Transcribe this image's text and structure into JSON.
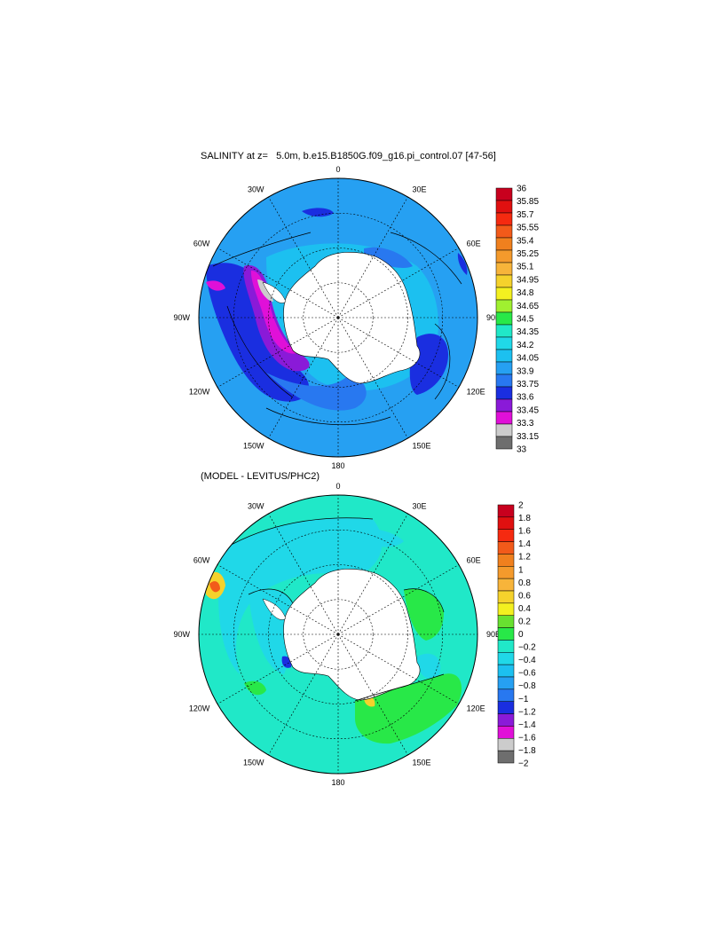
{
  "top_panel": {
    "title": "SALINITY at z=   5.0m, b.e15.B1850G.f09_g16.pi_control.07 [47-56]",
    "lon_labels": [
      "0",
      "30E",
      "60E",
      "90E",
      "120E",
      "150E",
      "180",
      "150W",
      "120W",
      "90W",
      "60W",
      "30W"
    ],
    "colorbar": {
      "labels": [
        "36",
        "35.85",
        "35.7",
        "35.55",
        "35.4",
        "35.25",
        "35.1",
        "34.95",
        "34.8",
        "34.65",
        "34.5",
        "34.35",
        "34.2",
        "34.05",
        "33.9",
        "33.75",
        "33.6",
        "33.45",
        "33.3",
        "33.15",
        "33"
      ],
      "colors": [
        "#c8001e",
        "#e01010",
        "#f52a10",
        "#f25a1a",
        "#f0801e",
        "#f49a2c",
        "#f7b43a",
        "#f5d22c",
        "#f3f020",
        "#a0f030",
        "#28e848",
        "#20e8c8",
        "#20d8e8",
        "#1cc0f0",
        "#26a0f2",
        "#2878f0",
        "#1a2ee0",
        "#8a1ad8",
        "#e010d8",
        "#cccccc",
        "#6e6e6e"
      ]
    }
  },
  "bottom_panel": {
    "title": "(MODEL - LEVITUS/PHC2)",
    "lon_labels": [
      "0",
      "30E",
      "60E",
      "90E",
      "120E",
      "150E",
      "180",
      "150W",
      "120W",
      "90W",
      "60W",
      "30W"
    ],
    "colorbar": {
      "labels": [
        "2",
        "1.8",
        "1.6",
        "1.4",
        "1.2",
        "1",
        "0.8",
        "0.6",
        "0.4",
        "0.2",
        "0",
        "−0.2",
        "−0.4",
        "−0.6",
        "−0.8",
        "−1",
        "−1.2",
        "−1.4",
        "−1.6",
        "−1.8",
        "−2"
      ],
      "colors": [
        "#c8001e",
        "#e01010",
        "#f52a10",
        "#f25a1a",
        "#f0801e",
        "#f49a2c",
        "#f7b43a",
        "#f5d22c",
        "#f3f020",
        "#68e030",
        "#28e848",
        "#20e8c8",
        "#20d8e8",
        "#1cc0f0",
        "#26a0f2",
        "#2878f0",
        "#1a2ee0",
        "#8a1ad8",
        "#e010d8",
        "#cccccc",
        "#6e6e6e"
      ]
    }
  }
}
